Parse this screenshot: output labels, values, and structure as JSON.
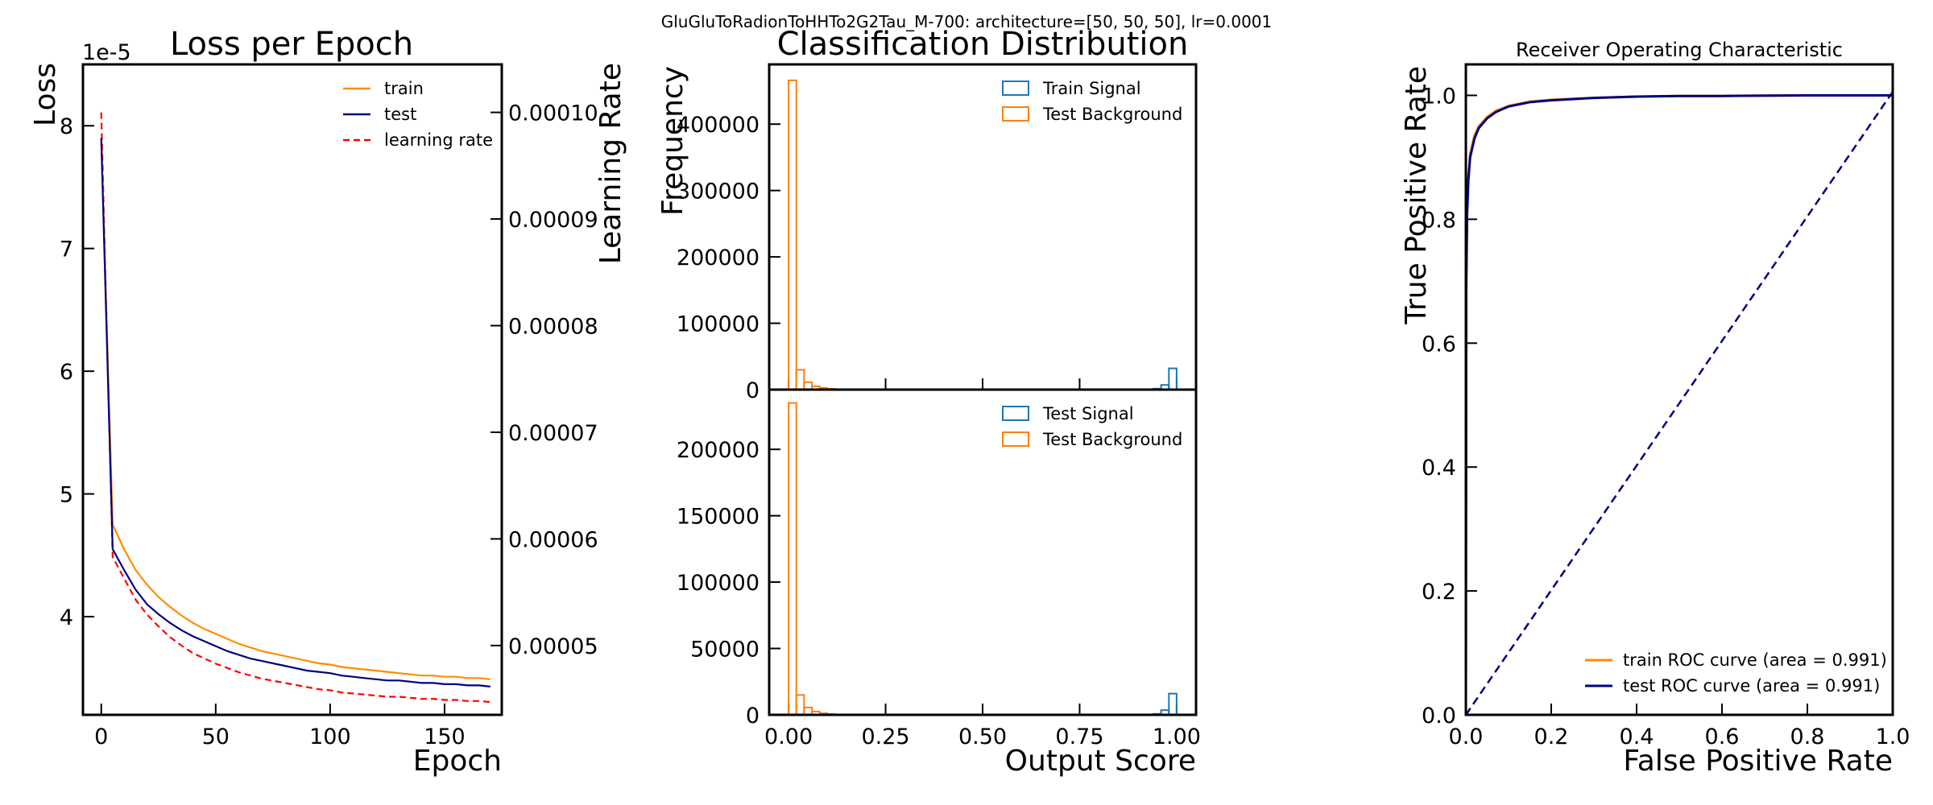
{
  "figure_title": "GluGluToRadionToHHTo2G2Tau_M-700: architecture=[50, 50, 50], lr=0.0001",
  "colors": {
    "train": "#ff8c00",
    "test": "#000080",
    "lr": "#ff0000",
    "signal": "#1f77b4",
    "background": "#ff7f0e"
  },
  "chart_data": [
    {
      "type": "line",
      "title": "Loss per Epoch",
      "xlabel": "Epoch",
      "ylabel": "Loss",
      "ylabel_right": "Learning Rate",
      "y_offset_label": "1e-5",
      "xlim": [
        -8,
        175
      ],
      "ylim": [
        3.2,
        8.5
      ],
      "ylim_right": [
        4.35e-05,
        0.0001045
      ],
      "xticks": [
        0,
        50,
        100,
        150
      ],
      "yticks": [
        4,
        5,
        6,
        7,
        8
      ],
      "yticks_right": [
        5e-05,
        6e-05,
        7e-05,
        8e-05,
        9e-05,
        0.0001
      ],
      "ytick_labels": [
        "4",
        "5",
        "6",
        "7",
        "8"
      ],
      "ytick_labels_right": [
        "0.00005",
        "0.00006",
        "0.00007",
        "0.00008",
        "0.00009",
        "0.00010"
      ],
      "xtick_labels": [
        "0",
        "50",
        "100",
        "150"
      ],
      "legend_position": "top-right",
      "series": [
        {
          "name": "train",
          "axis": "left",
          "style": "solid",
          "x_start": 0,
          "x_step": 5,
          "values": [
            7.9,
            4.75,
            4.55,
            4.38,
            4.26,
            4.16,
            4.08,
            4.01,
            3.95,
            3.9,
            3.86,
            3.82,
            3.78,
            3.75,
            3.72,
            3.7,
            3.68,
            3.66,
            3.64,
            3.62,
            3.61,
            3.59,
            3.58,
            3.57,
            3.56,
            3.55,
            3.54,
            3.53,
            3.52,
            3.52,
            3.51,
            3.51,
            3.5,
            3.5,
            3.49
          ]
        },
        {
          "name": "test",
          "axis": "left",
          "style": "solid",
          "x_start": 0,
          "x_step": 5,
          "values": [
            7.9,
            4.55,
            4.38,
            4.22,
            4.1,
            4.02,
            3.95,
            3.89,
            3.84,
            3.8,
            3.76,
            3.72,
            3.69,
            3.66,
            3.64,
            3.62,
            3.6,
            3.58,
            3.56,
            3.55,
            3.54,
            3.52,
            3.51,
            3.5,
            3.49,
            3.48,
            3.48,
            3.47,
            3.46,
            3.46,
            3.45,
            3.45,
            3.44,
            3.44,
            3.43
          ]
        },
        {
          "name": "learning rate",
          "axis": "right",
          "style": "dashed",
          "x_start": 0,
          "x_step": 5,
          "values": [
            0.0001,
            5.83e-05,
            5.63e-05,
            5.43e-05,
            5.29e-05,
            5.18e-05,
            5.08e-05,
            5e-05,
            4.93e-05,
            4.88e-05,
            4.83e-05,
            4.79e-05,
            4.75e-05,
            4.72e-05,
            4.69e-05,
            4.67e-05,
            4.65e-05,
            4.63e-05,
            4.61e-05,
            4.59e-05,
            4.58e-05,
            4.56e-05,
            4.55e-05,
            4.54e-05,
            4.53e-05,
            4.52e-05,
            4.52e-05,
            4.51e-05,
            4.5e-05,
            4.5e-05,
            4.49e-05,
            4.49e-05,
            4.48e-05,
            4.48e-05,
            4.47e-05
          ]
        }
      ]
    },
    {
      "type": "histogram",
      "title": "Classification Distribution",
      "xlabel": "Output Score",
      "ylabel": "Frequency",
      "xlim": [
        -0.05,
        1.05
      ],
      "xticks": [
        0,
        0.25,
        0.5,
        0.75,
        1
      ],
      "xtick_labels": [
        "0.00",
        "0.25",
        "0.50",
        "0.75",
        "1.00"
      ],
      "bin_width": 0.02,
      "legend_position": "top-right",
      "panels": [
        {
          "ylim": [
            0,
            490000
          ],
          "yticks": [
            0,
            100000,
            200000,
            300000,
            400000
          ],
          "ytick_labels": [
            "0",
            "100000",
            "200000",
            "300000",
            "400000"
          ],
          "series": [
            {
              "name": "Train Signal",
              "role": "signal",
              "bins": [
                [
                  0.94,
                  1500
                ],
                [
                  0.96,
                  7000
                ],
                [
                  0.98,
                  32000
                ]
              ]
            },
            {
              "name": "Test Background",
              "role": "background",
              "bins": [
                [
                  0.0,
                  466000
                ],
                [
                  0.02,
                  30000
                ],
                [
                  0.04,
                  11000
                ],
                [
                  0.06,
                  5000
                ],
                [
                  0.08,
                  2500
                ],
                [
                  0.1,
                  1200
                ],
                [
                  0.12,
                  600
                ],
                [
                  0.14,
                  300
                ]
              ]
            }
          ]
        },
        {
          "ylim": [
            0,
            245000
          ],
          "yticks": [
            0,
            50000,
            100000,
            150000,
            200000
          ],
          "ytick_labels": [
            "0",
            "50000",
            "100000",
            "150000",
            "200000"
          ],
          "series": [
            {
              "name": "Test Signal",
              "role": "signal",
              "bins": [
                [
                  0.94,
                  700
                ],
                [
                  0.96,
                  3500
                ],
                [
                  0.98,
                  16000
                ]
              ]
            },
            {
              "name": "Test Background",
              "role": "background",
              "bins": [
                [
                  0.0,
                  235000
                ],
                [
                  0.02,
                  15000
                ],
                [
                  0.04,
                  5500
                ],
                [
                  0.06,
                  2500
                ],
                [
                  0.08,
                  1200
                ],
                [
                  0.1,
                  600
                ],
                [
                  0.12,
                  300
                ],
                [
                  0.14,
                  150
                ]
              ]
            }
          ]
        }
      ]
    },
    {
      "type": "line",
      "title": "Receiver Operating Characteristic",
      "xlabel": "False Positive Rate",
      "ylabel": "True Positive Rate",
      "xlim": [
        0,
        1
      ],
      "ylim": [
        0,
        1.05
      ],
      "xticks": [
        0,
        0.2,
        0.4,
        0.6,
        0.8,
        1
      ],
      "yticks": [
        0,
        0.2,
        0.4,
        0.6,
        0.8,
        1
      ],
      "xtick_labels": [
        "0.0",
        "0.2",
        "0.4",
        "0.6",
        "0.8",
        "1.0"
      ],
      "ytick_labels": [
        "0.0",
        "0.2",
        "0.4",
        "0.6",
        "0.8",
        "1.0"
      ],
      "legend_position": "bottom-right",
      "series": [
        {
          "name": "train ROC curve (area = 0.991)",
          "x": [
            0,
            0.001,
            0.003,
            0.006,
            0.01,
            0.02,
            0.03,
            0.05,
            0.07,
            0.1,
            0.15,
            0.2,
            0.3,
            0.4,
            0.5,
            0.6,
            0.8,
            1.0
          ],
          "y": [
            0,
            0.7,
            0.82,
            0.87,
            0.905,
            0.935,
            0.95,
            0.965,
            0.975,
            0.983,
            0.99,
            0.993,
            0.996,
            0.998,
            0.999,
            0.999,
            1.0,
            1.0
          ]
        },
        {
          "name": "test ROC curve (area = 0.991)",
          "x": [
            0,
            0.001,
            0.003,
            0.006,
            0.01,
            0.02,
            0.03,
            0.05,
            0.07,
            0.1,
            0.15,
            0.2,
            0.3,
            0.4,
            0.5,
            0.6,
            0.8,
            1.0
          ],
          "y": [
            0,
            0.69,
            0.81,
            0.865,
            0.9,
            0.93,
            0.947,
            0.963,
            0.973,
            0.982,
            0.989,
            0.992,
            0.996,
            0.998,
            0.999,
            0.999,
            1.0,
            1.0
          ]
        }
      ]
    }
  ]
}
